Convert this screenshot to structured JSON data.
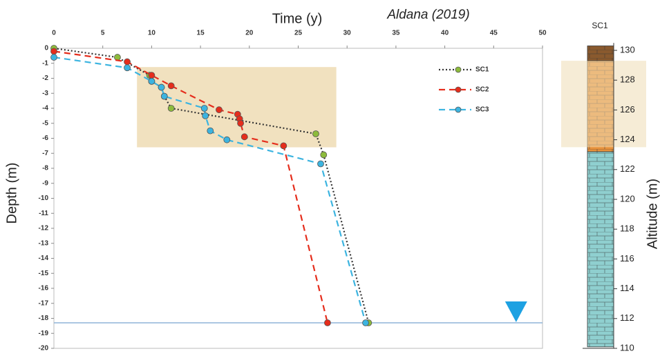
{
  "chart_data": [
    {
      "type": "line",
      "x_label": "Time (y)",
      "y_label": "Depth (m)",
      "annotation": "Aldana (2019)",
      "xlim": [
        0,
        50
      ],
      "xticks": [
        0,
        5,
        10,
        15,
        20,
        25,
        30,
        35,
        40,
        45,
        50
      ],
      "ylim": [
        -20,
        0
      ],
      "yticks": [
        0,
        -1,
        -2,
        -3,
        -4,
        -5,
        -6,
        -7,
        -8,
        -9,
        -10,
        -11,
        -12,
        -13,
        -14,
        -15,
        -16,
        -17,
        -18,
        -19,
        -20
      ],
      "highlight": {
        "x": [
          8.5,
          28.9
        ],
        "y": [
          -1.25,
          -6.6
        ],
        "color": "#efdcb4"
      },
      "water_table": -18.3,
      "water_table_marker_x": 47.3,
      "series": [
        {
          "name": "SC1",
          "color": "#8dbb3c",
          "line_color": "#333333",
          "dash": "2,3",
          "x": [
            0,
            6.5,
            9.8,
            10,
            11,
            11.3,
            12,
            26.8,
            27.6,
            32.2
          ],
          "values": [
            0,
            -0.6,
            -1.8,
            -2.2,
            -2.6,
            -3.2,
            -4,
            -5.7,
            -7.1,
            -18.3
          ]
        },
        {
          "name": "SC2",
          "color": "#e52d1c",
          "line_color": "#e52d1c",
          "dash": "9,6",
          "x": [
            0,
            7.5,
            10,
            12,
            16.9,
            18.8,
            19,
            19.1,
            19.5,
            23.5,
            28
          ],
          "values": [
            -0.2,
            -0.9,
            -1.8,
            -2.5,
            -4.1,
            -4.4,
            -4.7,
            -5,
            -5.9,
            -6.5,
            -18.3
          ]
        },
        {
          "name": "SC3",
          "color": "#3cb4e0",
          "line_color": "#3cb4e0",
          "dash": "9,6",
          "x": [
            0,
            7.5,
            10,
            11,
            11.3,
            15.4,
            15.5,
            16,
            17.7,
            27.3,
            31.9
          ],
          "values": [
            -0.6,
            -1.3,
            -2.2,
            -2.6,
            -3.2,
            -4,
            -4.5,
            -5.5,
            -6.1,
            -7.7,
            -18.3
          ]
        }
      ]
    },
    {
      "type": "strata",
      "title": "SC1",
      "y_label": "Altitude (m)",
      "ylim": [
        110,
        130.5
      ],
      "yticks": [
        110,
        112,
        114,
        116,
        118,
        120,
        122,
        124,
        126,
        128,
        130
      ],
      "highlight": {
        "y": [
          123.5,
          129.3
        ],
        "color": "#efdcb4"
      },
      "layers": [
        {
          "top": 130.3,
          "bottom": 129.3,
          "color": "#8a5a2e"
        },
        {
          "top": 129.3,
          "bottom": 123.2,
          "color": "#e8923c"
        },
        {
          "top": 123.2,
          "bottom": 110.1,
          "color": "#8fcfcf"
        }
      ]
    }
  ]
}
